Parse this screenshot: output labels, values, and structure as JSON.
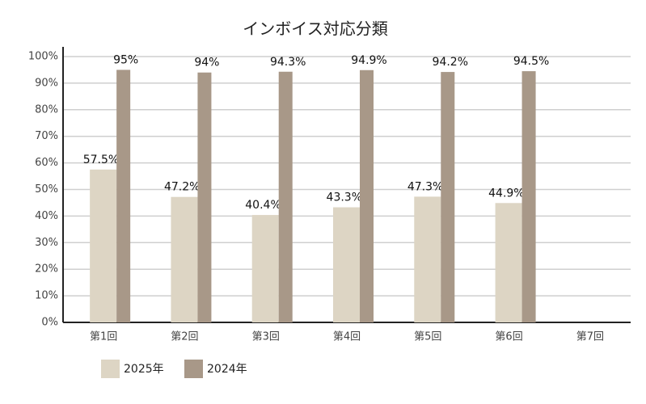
{
  "chart_data": {
    "type": "bar",
    "title": "インボイス対応分類",
    "categories": [
      "第1回",
      "第2回",
      "第3回",
      "第4回",
      "第5回",
      "第6回",
      "第7回"
    ],
    "series": [
      {
        "name": "2025年",
        "color": "#ddd5c4",
        "values": [
          57.5,
          47.2,
          40.4,
          43.3,
          47.3,
          44.9,
          null
        ],
        "value_labels": [
          "57.5%",
          "47.2%",
          "40.4%",
          "43.3%",
          "47.3%",
          "44.9%",
          null
        ]
      },
      {
        "name": "2024年",
        "color": "#a89888",
        "values": [
          95,
          94,
          94.3,
          94.9,
          94.2,
          94.5,
          null
        ],
        "value_labels": [
          "95%",
          "94%",
          "94.3%",
          "94.9%",
          "94.2%",
          "94.5%",
          null
        ]
      }
    ],
    "ylim": [
      0,
      100
    ],
    "yticks": [
      {
        "value": 0,
        "label": "0%"
      },
      {
        "value": 10,
        "label": "10%"
      },
      {
        "value": 20,
        "label": "20%"
      },
      {
        "value": 30,
        "label": "30%"
      },
      {
        "value": 40,
        "label": "40%"
      },
      {
        "value": 50,
        "label": "50%"
      },
      {
        "value": 60,
        "label": "60%"
      },
      {
        "value": 70,
        "label": "70%"
      },
      {
        "value": 80,
        "label": "80%"
      },
      {
        "value": 90,
        "label": "90%"
      },
      {
        "value": 100,
        "label": "100%"
      }
    ],
    "grid": true
  }
}
